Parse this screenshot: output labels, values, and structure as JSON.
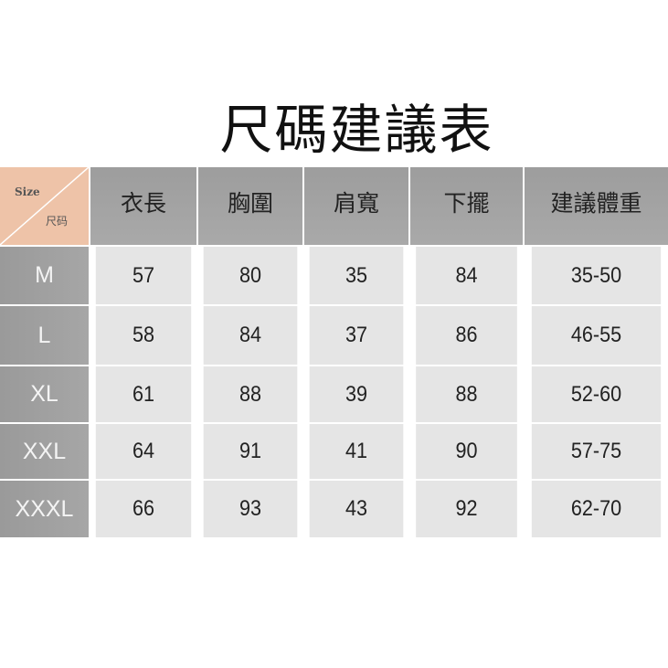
{
  "title": "尺碼建議表",
  "corner": {
    "size_label": "Size",
    "code_label": "尺码"
  },
  "headers": [
    "衣長",
    "胸圍",
    "肩寬",
    "下擺",
    "建議體重"
  ],
  "rows": [
    {
      "size": "M",
      "values": [
        "57",
        "80",
        "35",
        "84",
        "35-50"
      ]
    },
    {
      "size": "L",
      "values": [
        "58",
        "84",
        "37",
        "86",
        "46-55"
      ]
    },
    {
      "size": "XL",
      "values": [
        "61",
        "88",
        "39",
        "88",
        "52-60"
      ]
    },
    {
      "size": "XXL",
      "values": [
        "64",
        "91",
        "41",
        "90",
        "57-75"
      ]
    },
    {
      "size": "XXXL",
      "values": [
        "66",
        "93",
        "43",
        "92",
        "62-70"
      ]
    }
  ],
  "colors": {
    "corner": "#eec3a8",
    "header": "#a0a0a0",
    "cell": "#e5e5e5"
  }
}
